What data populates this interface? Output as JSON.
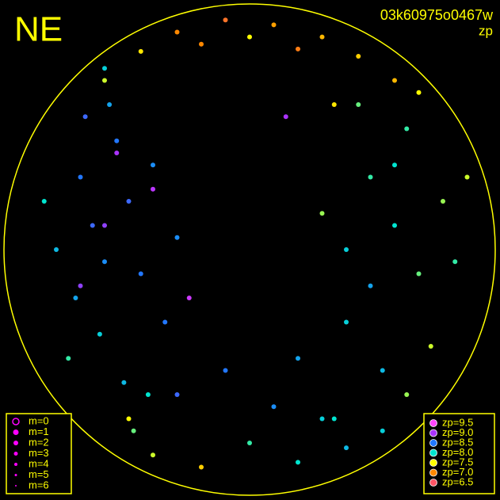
{
  "chart_data": {
    "type": "scatter",
    "title": "NE",
    "subtitle": "03k60975o0467w",
    "annotation": "zp",
    "xlim": [
      -1,
      1
    ],
    "ylim": [
      -1,
      1
    ],
    "x": [
      -0.7,
      -0.65,
      -0.6,
      -0.72,
      -0.55,
      -0.5,
      -0.8,
      -0.62,
      -0.45,
      -0.4,
      -0.58,
      -0.68,
      -0.75,
      -0.35,
      -0.3,
      -0.52,
      -0.42,
      -0.6,
      -0.85,
      -0.48,
      0.5,
      0.6,
      0.7,
      0.4,
      0.55,
      0.8,
      0.65,
      0.45,
      0.35,
      0.75,
      0.85,
      0.5,
      0.6,
      0.3,
      0.7,
      0.4,
      0.9,
      0.2,
      0.55,
      0.65,
      -0.3,
      -0.1,
      0.1,
      0.3,
      -0.45,
      0.45,
      -0.2,
      0.2,
      0.0,
      -0.6,
      0.6,
      0.35,
      -0.4,
      -0.2,
      0.0,
      0.2,
      0.4,
      -0.5,
      -0.3,
      0.1,
      0.3,
      -0.1,
      -0.55,
      -0.4,
      -0.6,
      0.15,
      -0.25,
      -0.7
    ],
    "y": [
      0.3,
      0.1,
      -0.05,
      -0.2,
      0.45,
      0.2,
      0.0,
      -0.35,
      -0.1,
      0.35,
      0.6,
      0.55,
      -0.45,
      -0.3,
      0.05,
      -0.55,
      -0.6,
      0.75,
      0.2,
      -0.75,
      0.3,
      0.1,
      -0.1,
      -0.3,
      -0.5,
      0.2,
      0.5,
      0.6,
      -0.7,
      -0.4,
      -0.05,
      -0.15,
      0.35,
      0.15,
      0.65,
      0.0,
      0.3,
      -0.45,
      -0.75,
      -0.6,
      0.9,
      0.95,
      0.93,
      0.88,
      0.82,
      0.8,
      0.85,
      0.83,
      0.88,
      0.7,
      0.7,
      0.6,
      -0.85,
      -0.9,
      -0.8,
      -0.88,
      -0.82,
      -0.7,
      -0.6,
      -0.65,
      -0.7,
      -0.5,
      0.4,
      0.25,
      0.1,
      0.55,
      -0.2,
      -0.15
    ],
    "values": [
      8.5,
      8.6,
      8.4,
      8.3,
      8.5,
      8.6,
      8.2,
      8.1,
      8.5,
      8.4,
      8.3,
      8.6,
      7.9,
      8.5,
      8.4,
      8.2,
      8.0,
      8.1,
      8.0,
      7.8,
      7.9,
      8.0,
      7.8,
      8.1,
      8.2,
      7.7,
      7.9,
      7.8,
      8.0,
      7.6,
      7.9,
      8.3,
      8.0,
      7.7,
      7.5,
      8.1,
      7.6,
      8.3,
      8.1,
      7.7,
      7.0,
      6.8,
      7.1,
      7.2,
      7.4,
      7.3,
      7.0,
      6.9,
      7.5,
      7.6,
      7.2,
      7.4,
      7.6,
      7.3,
      7.9,
      8.0,
      8.2,
      7.5,
      8.6,
      8.4,
      8.1,
      8.5,
      9.0,
      9.1,
      8.9,
      9.0,
      9.2,
      8.9
    ],
    "size_legend": [
      "m=0",
      "m=1",
      "m=2",
      "m=3",
      "m=4",
      "m=5",
      "m=6"
    ],
    "color_legend": [
      {
        "value": 9.5,
        "label": "zp=9.5",
        "color": "#ff44ff"
      },
      {
        "value": 9.0,
        "label": "zp=9.0",
        "color": "#aa33ff"
      },
      {
        "value": 8.5,
        "label": "zp=8.5",
        "color": "#2277ff"
      },
      {
        "value": 8.0,
        "label": "zp=8.0",
        "color": "#00e5d0"
      },
      {
        "value": 7.5,
        "label": "zp=7.5",
        "color": "#ffff00"
      },
      {
        "value": 7.0,
        "label": "zp=7.0",
        "color": "#ff8800"
      },
      {
        "value": 6.5,
        "label": "zp=6.5",
        "color": "#ff5566"
      }
    ],
    "frame_color": "#ffff00"
  }
}
